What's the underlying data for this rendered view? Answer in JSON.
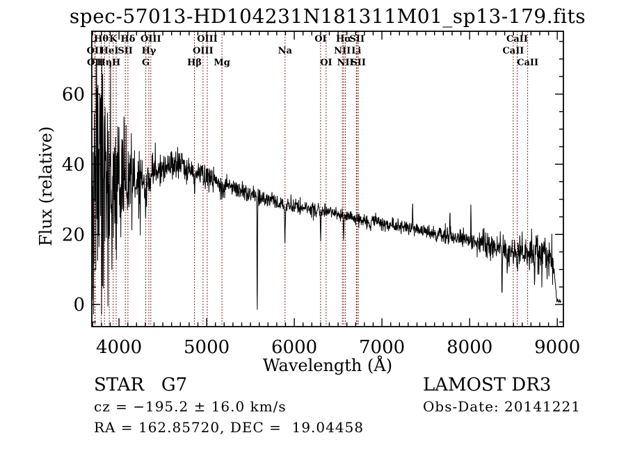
{
  "title": "spec-57013-HD104231N181311M01_sp13-179.fits",
  "footer": {
    "classification": "STAR   G7",
    "survey": "LAMOST DR3",
    "cz_line": "cz = −195.2 ± 16.0 km/s",
    "obs_date_line": "Obs-Date: 20141221",
    "radec_line": "RA = 162.85720, DEC =  19.04458"
  },
  "chart_data": {
    "type": "line",
    "title": "spec-57013-HD104231N181311M01_sp13-179.fits",
    "xlabel": "Wavelength (Å)",
    "ylabel": "Flux (relative)",
    "xlim": [
      3690,
      9070
    ],
    "ylim": [
      -6.3,
      77.9
    ],
    "x_ticks": [
      4000,
      5000,
      6000,
      7000,
      8000,
      9000
    ],
    "y_ticks": [
      0,
      20,
      40,
      60
    ],
    "x_minor_step": 100,
    "y_minor_step": 5,
    "grid": false,
    "line_color": "#000000",
    "marker_line_color": "#8b2323",
    "background": "#ffffff",
    "spectral_lines": [
      {
        "label": "Hθ",
        "wavelength": 3798,
        "row": 1
      },
      {
        "label": "K",
        "wavelength": 3934,
        "row": 1
      },
      {
        "label": "Hδ",
        "wavelength": 4102,
        "row": 1
      },
      {
        "label": "OIII",
        "wavelength": 4363,
        "row": 1
      },
      {
        "label": "OIII",
        "wavelength": 5007,
        "row": 1
      },
      {
        "label": "OI",
        "wavelength": 6300,
        "row": 1
      },
      {
        "label": "Hα",
        "wavelength": 6563,
        "row": 1
      },
      {
        "label": "SII",
        "wavelength": 6716,
        "row": 1
      },
      {
        "label": "CaII",
        "wavelength": 8542,
        "row": 1
      },
      {
        "label": "OII",
        "wavelength": 3725,
        "row": 2
      },
      {
        "label": "HeI",
        "wavelength": 3889,
        "row": 2
      },
      {
        "label": "SII",
        "wavelength": 4072,
        "row": 2
      },
      {
        "label": "Hγ",
        "wavelength": 4341,
        "row": 2
      },
      {
        "label": "OIII",
        "wavelength": 4959,
        "row": 2
      },
      {
        "label": "Na",
        "wavelength": 5894,
        "row": 2
      },
      {
        "label": "NII",
        "wavelength": 6548,
        "row": 2
      },
      {
        "label": "Li",
        "wavelength": 6708,
        "row": 2
      },
      {
        "label": "CaII",
        "wavelength": 8498,
        "row": 2
      },
      {
        "label": "OII",
        "wavelength": 3727,
        "row": 3
      },
      {
        "label": "Hη",
        "wavelength": 3835,
        "row": 3
      },
      {
        "label": "H",
        "wavelength": 3968,
        "row": 3
      },
      {
        "label": "G",
        "wavelength": 4306,
        "row": 3
      },
      {
        "label": "Hβ",
        "wavelength": 4861,
        "row": 3
      },
      {
        "label": "Mg",
        "wavelength": 5175,
        "row": 3
      },
      {
        "label": "OI",
        "wavelength": 6363,
        "row": 3
      },
      {
        "label": "NII",
        "wavelength": 6583,
        "row": 3
      },
      {
        "label": "SII",
        "wavelength": 6731,
        "row": 3
      },
      {
        "label": "CaII",
        "wavelength": 8662,
        "row": 3
      }
    ],
    "continuum": [
      [
        3690,
        18
      ],
      [
        3700,
        32
      ],
      [
        3760,
        35
      ],
      [
        3830,
        34
      ],
      [
        3900,
        34.5
      ],
      [
        4000,
        35
      ],
      [
        4100,
        35.5
      ],
      [
        4200,
        36
      ],
      [
        4300,
        36.5
      ],
      [
        4400,
        37.5
      ],
      [
        4500,
        38.5
      ],
      [
        4600,
        39.5
      ],
      [
        4700,
        40
      ],
      [
        4800,
        38.5
      ],
      [
        4900,
        37.5
      ],
      [
        5000,
        36.5
      ],
      [
        5100,
        35.8
      ],
      [
        5250,
        34
      ],
      [
        5400,
        32.5
      ],
      [
        5550,
        30.8
      ],
      [
        5700,
        29.8
      ],
      [
        5850,
        28.8
      ],
      [
        6000,
        28
      ],
      [
        6150,
        27.3
      ],
      [
        6300,
        26.6
      ],
      [
        6450,
        26
      ],
      [
        6600,
        25.2
      ],
      [
        6750,
        24.3
      ],
      [
        6900,
        23.6
      ],
      [
        7050,
        23
      ],
      [
        7200,
        22.4
      ],
      [
        7350,
        21.9
      ],
      [
        7500,
        21
      ],
      [
        7650,
        20.2
      ],
      [
        7800,
        19.4
      ],
      [
        7950,
        18.5
      ],
      [
        8100,
        17.5
      ],
      [
        8250,
        16.5
      ],
      [
        8400,
        15.8
      ],
      [
        8550,
        15
      ],
      [
        8700,
        14.6
      ],
      [
        8850,
        14.3
      ],
      [
        8950,
        13.8
      ],
      [
        8975,
        7
      ],
      [
        8995,
        1
      ],
      [
        9045,
        0.8
      ]
    ],
    "features": [
      {
        "wavelength": 4102,
        "delta": -5,
        "fwhm": 10
      },
      {
        "wavelength": 4227,
        "delta": -6,
        "fwhm": 8
      },
      {
        "wavelength": 4305,
        "delta": -9,
        "fwhm": 18
      },
      {
        "wavelength": 4341,
        "delta": -5,
        "fwhm": 9
      },
      {
        "wavelength": 4861,
        "delta": -6,
        "fwhm": 10
      },
      {
        "wavelength": 5175,
        "delta": -4.5,
        "fwhm": 20
      },
      {
        "wavelength": 5577,
        "delta": -33,
        "fwhm": 7
      },
      {
        "wavelength": 5893,
        "delta": -9,
        "fwhm": 10
      },
      {
        "wavelength": 6300,
        "delta": -8,
        "fwhm": 7
      },
      {
        "wavelength": 6563,
        "delta": -6,
        "fwhm": 9
      },
      {
        "wavelength": 6870,
        "delta": -3,
        "fwhm": 14
      },
      {
        "wavelength": 7350,
        "delta": 8,
        "fwhm": 6
      },
      {
        "wavelength": 7620,
        "delta": -2.5,
        "fwhm": 14
      },
      {
        "wavelength": 7776,
        "delta": 8,
        "fwhm": 6
      },
      {
        "wavelength": 8015,
        "delta": 9,
        "fwhm": 6
      },
      {
        "wavelength": 8370,
        "delta": -12,
        "fwhm": 7
      },
      {
        "wavelength": 8430,
        "delta": -8,
        "fwhm": 7
      },
      {
        "wavelength": 8498,
        "delta": -4,
        "fwhm": 8
      },
      {
        "wavelength": 8542,
        "delta": -5,
        "fwhm": 8
      },
      {
        "wavelength": 8662,
        "delta": -4,
        "fwhm": 8
      },
      {
        "wavelength": 8740,
        "delta": -11,
        "fwhm": 7
      },
      {
        "wavelength": 8860,
        "delta": 7,
        "fwhm": 6
      }
    ],
    "noise_segments": [
      [
        3690,
        3770,
        26
      ],
      [
        3770,
        3830,
        19
      ],
      [
        3830,
        3920,
        14
      ],
      [
        3920,
        4000,
        10
      ],
      [
        4000,
        4080,
        8.5
      ],
      [
        4080,
        4180,
        6.5
      ],
      [
        4180,
        4300,
        4.2
      ],
      [
        4300,
        4450,
        3
      ],
      [
        4450,
        4700,
        2.1
      ],
      [
        4700,
        5200,
        1.8
      ],
      [
        5200,
        5600,
        1.5
      ],
      [
        5600,
        6000,
        1.2
      ],
      [
        6000,
        6500,
        1.05
      ],
      [
        6500,
        7000,
        0.95
      ],
      [
        7000,
        7600,
        1.0
      ],
      [
        7600,
        8100,
        1.3
      ],
      [
        8100,
        8450,
        2.0
      ],
      [
        8450,
        8700,
        2.4
      ],
      [
        8700,
        8960,
        2.8
      ],
      [
        8960,
        9045,
        0.4
      ]
    ],
    "flux_clamp": [
      -2.8,
      68.5
    ],
    "sample_step": 3,
    "seed": 7
  }
}
